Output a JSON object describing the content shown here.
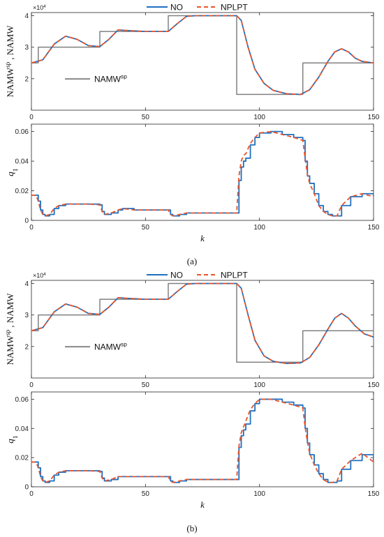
{
  "figure_labels": [
    "(a)",
    "(b)"
  ],
  "chart_data": [
    {
      "id": "a-top",
      "type": "line",
      "xlabel": "",
      "ylabel": "NAMW^sp , NAMW",
      "xlim": [
        0,
        150
      ],
      "ylim": [
        10000,
        41000
      ],
      "xticks": [
        0,
        50,
        100,
        150
      ],
      "yticks": [
        20000,
        30000,
        40000
      ],
      "ytick_labels": [
        "2",
        "3",
        "4"
      ],
      "multiplier_label": "×10^4",
      "legend": {
        "entries": [
          "NO",
          "NPLPT"
        ],
        "placement": "top-center"
      },
      "inline_legend": {
        "text": "NAMW^sp",
        "placement": "lower-left"
      },
      "series": [
        {
          "name": "NAMW^sp",
          "color": "#808080",
          "style": "step",
          "x": [
            0,
            3,
            30,
            60,
            90,
            119,
            150
          ],
          "y": [
            25000,
            30000,
            35000,
            40000,
            15000,
            25000,
            25000
          ]
        },
        {
          "name": "NO",
          "color": "#1f6fc0",
          "style": "solid",
          "x": [
            0,
            5,
            10,
            15,
            20,
            25,
            30,
            34,
            38,
            42,
            50,
            60,
            64,
            68,
            72,
            80,
            90,
            92,
            95,
            98,
            102,
            106,
            112,
            118,
            122,
            126,
            130,
            133,
            136,
            139,
            142,
            145,
            150
          ],
          "y": [
            25000,
            26000,
            31000,
            33500,
            32500,
            30500,
            30200,
            32500,
            35500,
            35300,
            35000,
            35000,
            37500,
            39800,
            40000,
            40000,
            40000,
            38500,
            30000,
            23000,
            18500,
            16300,
            15200,
            15000,
            16500,
            20500,
            25500,
            28500,
            29500,
            28500,
            26500,
            25500,
            25000
          ]
        },
        {
          "name": "NPLPT",
          "color": "#e8552a",
          "style": "dashed",
          "x": [
            0,
            5,
            10,
            15,
            20,
            25,
            30,
            34,
            38,
            42,
            50,
            60,
            64,
            68,
            72,
            80,
            90,
            92,
            95,
            98,
            102,
            106,
            112,
            118,
            122,
            126,
            130,
            133,
            136,
            139,
            142,
            145,
            150
          ],
          "y": [
            25000,
            26000,
            31000,
            33500,
            32500,
            30500,
            30200,
            32500,
            35500,
            35300,
            35000,
            35000,
            37500,
            39800,
            40000,
            40000,
            40000,
            38500,
            30000,
            23000,
            18500,
            16300,
            15200,
            15000,
            16500,
            20500,
            25500,
            28500,
            29500,
            28500,
            26500,
            25500,
            25000
          ]
        }
      ]
    },
    {
      "id": "a-bottom",
      "type": "line",
      "xlabel": "k",
      "ylabel": "q1",
      "xlim": [
        0,
        150
      ],
      "ylim": [
        0,
        0.065
      ],
      "xticks": [
        0,
        50,
        100,
        150
      ],
      "yticks": [
        0,
        0.02,
        0.04,
        0.06
      ],
      "ytick_labels": [
        "0",
        "0.02",
        "0.04",
        "0.06"
      ],
      "series": [
        {
          "name": "NO",
          "color": "#1f6fc0",
          "style": "stair",
          "x": [
            0,
            2,
            3,
            4,
            5,
            6,
            8,
            10,
            12,
            15,
            20,
            25,
            30,
            31,
            32,
            35,
            38,
            40,
            45,
            50,
            60,
            61,
            62,
            65,
            68,
            70,
            75,
            80,
            90,
            91,
            92,
            93,
            94,
            96,
            98,
            100,
            105,
            110,
            115,
            119,
            120,
            121,
            122,
            124,
            126,
            128,
            130,
            132,
            134,
            136,
            140,
            145,
            150
          ],
          "y": [
            0.017,
            0.017,
            0.013,
            0.007,
            0.004,
            0.003,
            0.004,
            0.008,
            0.01,
            0.011,
            0.011,
            0.011,
            0.0105,
            0.006,
            0.004,
            0.005,
            0.007,
            0.008,
            0.007,
            0.007,
            0.007,
            0.004,
            0.003,
            0.004,
            0.005,
            0.005,
            0.005,
            0.005,
            0.005,
            0.027,
            0.036,
            0.04,
            0.042,
            0.051,
            0.056,
            0.059,
            0.06,
            0.058,
            0.056,
            0.054,
            0.04,
            0.03,
            0.025,
            0.018,
            0.01,
            0.006,
            0.004,
            0.003,
            0.003,
            0.01,
            0.016,
            0.018,
            0.016
          ]
        },
        {
          "name": "NPLPT",
          "color": "#e8552a",
          "style": "dashed",
          "x": [
            0,
            2,
            3,
            4,
            5,
            6,
            8,
            10,
            12,
            15,
            20,
            25,
            30,
            31,
            32,
            35,
            38,
            40,
            45,
            50,
            60,
            61,
            62,
            65,
            68,
            70,
            75,
            80,
            90,
            91,
            92,
            93,
            94,
            96,
            98,
            100,
            105,
            110,
            115,
            119,
            120,
            121,
            122,
            124,
            126,
            128,
            130,
            132,
            134,
            136,
            140,
            145,
            150
          ],
          "y": [
            0.017,
            0.017,
            0.013,
            0.007,
            0.004,
            0.003,
            0.004,
            0.008,
            0.01,
            0.011,
            0.011,
            0.011,
            0.0105,
            0.006,
            0.004,
            0.005,
            0.007,
            0.008,
            0.007,
            0.007,
            0.007,
            0.004,
            0.003,
            0.004,
            0.005,
            0.005,
            0.005,
            0.005,
            0.005,
            0.03,
            0.04,
            0.044,
            0.045,
            0.052,
            0.056,
            0.059,
            0.06,
            0.058,
            0.056,
            0.054,
            0.042,
            0.031,
            0.025,
            0.018,
            0.01,
            0.006,
            0.004,
            0.003,
            0.003,
            0.01,
            0.016,
            0.018,
            0.016
          ]
        }
      ]
    },
    {
      "id": "b-top",
      "type": "line",
      "xlabel": "",
      "ylabel": "NAMW^sp , NAMW",
      "xlim": [
        0,
        150
      ],
      "ylim": [
        10000,
        41000
      ],
      "xticks": [
        0,
        50,
        100,
        150
      ],
      "yticks": [
        20000,
        30000,
        40000
      ],
      "ytick_labels": [
        "2",
        "3",
        "4"
      ],
      "multiplier_label": "×10^4",
      "legend": {
        "entries": [
          "NO",
          "NPLPT"
        ],
        "placement": "top-center"
      },
      "inline_legend": {
        "text": "NAMW^sp",
        "placement": "lower-left"
      },
      "series": [
        {
          "name": "NAMW^sp",
          "color": "#808080",
          "style": "step",
          "x": [
            0,
            3,
            30,
            60,
            90,
            119,
            150
          ],
          "y": [
            25000,
            30000,
            35000,
            40000,
            15000,
            25000,
            25000
          ]
        },
        {
          "name": "NO",
          "color": "#1f6fc0",
          "style": "solid",
          "x": [
            0,
            5,
            10,
            15,
            20,
            25,
            30,
            34,
            38,
            42,
            50,
            60,
            64,
            68,
            72,
            80,
            90,
            92,
            95,
            98,
            102,
            106,
            112,
            118,
            122,
            126,
            130,
            133,
            136,
            139,
            142,
            146,
            150
          ],
          "y": [
            25000,
            26000,
            31000,
            33500,
            32500,
            30500,
            30200,
            32500,
            35500,
            35300,
            35000,
            35000,
            37500,
            39800,
            40000,
            40000,
            40000,
            38500,
            30000,
            22000,
            17000,
            15300,
            14600,
            14800,
            16500,
            20500,
            25500,
            29000,
            30500,
            29000,
            26500,
            24000,
            23000
          ]
        },
        {
          "name": "NPLPT",
          "color": "#e8552a",
          "style": "dashed",
          "x": [
            0,
            5,
            10,
            15,
            20,
            25,
            30,
            34,
            38,
            42,
            50,
            60,
            64,
            68,
            72,
            80,
            90,
            92,
            95,
            98,
            102,
            106,
            112,
            118,
            122,
            126,
            130,
            133,
            136,
            139,
            142,
            146,
            150
          ],
          "y": [
            25000,
            26000,
            31000,
            33500,
            32500,
            30500,
            30200,
            32500,
            35500,
            35300,
            35000,
            35000,
            37500,
            39800,
            40000,
            40000,
            40000,
            38500,
            30000,
            22000,
            17000,
            15300,
            14600,
            14800,
            16500,
            20500,
            25500,
            29000,
            30500,
            29000,
            26500,
            24000,
            23000
          ]
        }
      ]
    },
    {
      "id": "b-bottom",
      "type": "line",
      "xlabel": "k",
      "ylabel": "q1",
      "xlim": [
        0,
        150
      ],
      "ylim": [
        0,
        0.065
      ],
      "xticks": [
        0,
        50,
        100,
        150
      ],
      "yticks": [
        0,
        0.02,
        0.04,
        0.06
      ],
      "ytick_labels": [
        "0",
        "0.02",
        "0.04",
        "0.06"
      ],
      "series": [
        {
          "name": "NO",
          "color": "#1f6fc0",
          "style": "stair",
          "x": [
            0,
            2,
            3,
            4,
            5,
            6,
            8,
            10,
            12,
            15,
            20,
            25,
            30,
            31,
            32,
            35,
            38,
            40,
            45,
            50,
            60,
            61,
            62,
            65,
            68,
            70,
            75,
            80,
            90,
            91,
            92,
            93,
            94,
            96,
            98,
            100,
            105,
            110,
            115,
            119,
            120,
            121,
            122,
            124,
            126,
            128,
            130,
            132,
            134,
            136,
            140,
            145,
            150
          ],
          "y": [
            0.017,
            0.017,
            0.013,
            0.007,
            0.004,
            0.003,
            0.004,
            0.008,
            0.01,
            0.011,
            0.011,
            0.011,
            0.0105,
            0.006,
            0.004,
            0.005,
            0.007,
            0.007,
            0.007,
            0.007,
            0.007,
            0.004,
            0.003,
            0.004,
            0.005,
            0.005,
            0.005,
            0.005,
            0.005,
            0.027,
            0.035,
            0.039,
            0.043,
            0.052,
            0.057,
            0.06,
            0.06,
            0.058,
            0.056,
            0.054,
            0.04,
            0.03,
            0.022,
            0.015,
            0.009,
            0.005,
            0.003,
            0.003,
            0.004,
            0.012,
            0.018,
            0.022,
            0.017
          ]
        },
        {
          "name": "NPLPT",
          "color": "#e8552a",
          "style": "dashed",
          "x": [
            0,
            2,
            3,
            4,
            5,
            6,
            8,
            10,
            12,
            15,
            20,
            25,
            30,
            31,
            32,
            35,
            38,
            40,
            45,
            50,
            60,
            61,
            62,
            65,
            68,
            70,
            75,
            80,
            90,
            91,
            92,
            93,
            94,
            96,
            98,
            100,
            105,
            110,
            115,
            119,
            120,
            121,
            122,
            124,
            126,
            128,
            130,
            132,
            134,
            136,
            140,
            145,
            150
          ],
          "y": [
            0.017,
            0.017,
            0.013,
            0.007,
            0.004,
            0.003,
            0.004,
            0.008,
            0.01,
            0.011,
            0.011,
            0.011,
            0.0105,
            0.006,
            0.004,
            0.005,
            0.007,
            0.007,
            0.007,
            0.007,
            0.007,
            0.004,
            0.003,
            0.004,
            0.005,
            0.005,
            0.005,
            0.005,
            0.005,
            0.028,
            0.037,
            0.041,
            0.045,
            0.053,
            0.057,
            0.06,
            0.06,
            0.058,
            0.056,
            0.054,
            0.041,
            0.031,
            0.023,
            0.015,
            0.009,
            0.005,
            0.003,
            0.003,
            0.004,
            0.012,
            0.018,
            0.023,
            0.017
          ]
        }
      ]
    }
  ]
}
